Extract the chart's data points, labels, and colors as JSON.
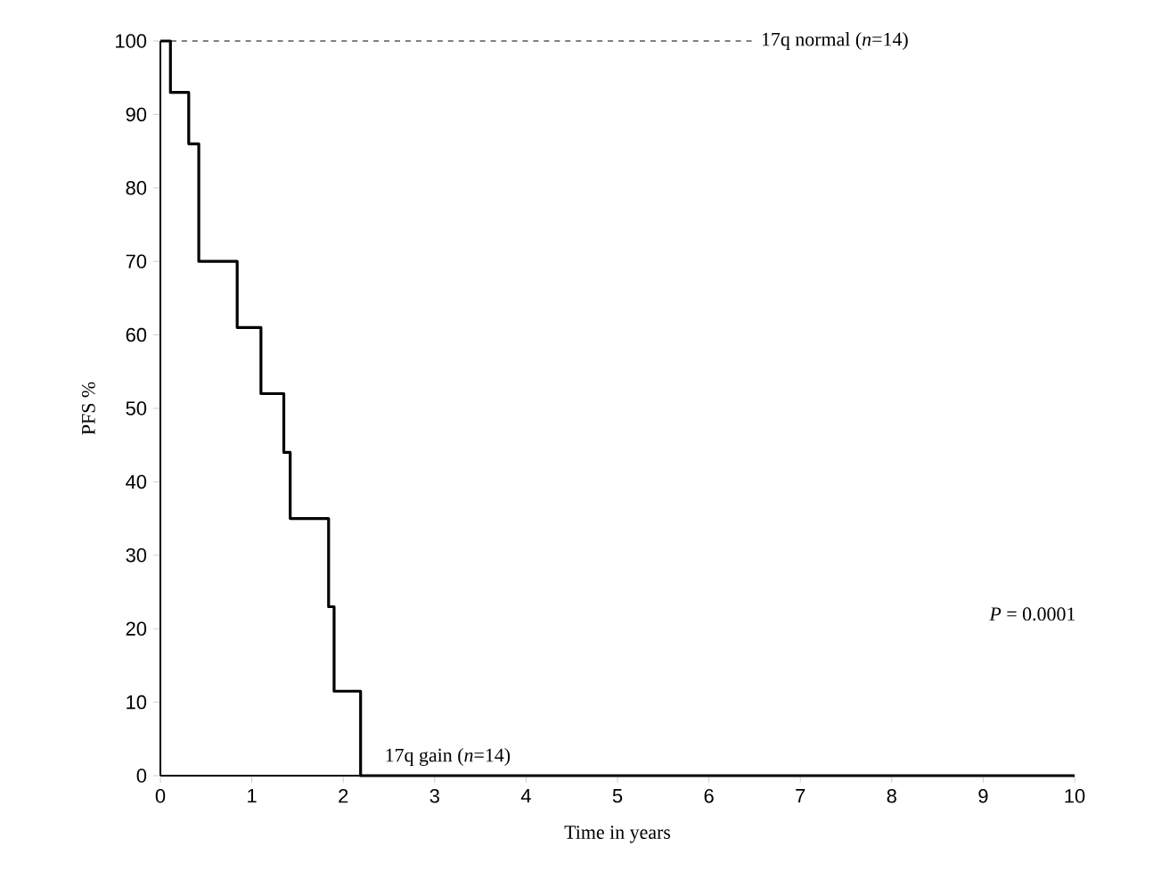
{
  "chart_data": {
    "type": "step",
    "xlabel": "Time in years",
    "ylabel": "PFS %",
    "xlim": [
      0,
      10
    ],
    "ylim": [
      0,
      100
    ],
    "xticks": [
      0,
      1,
      2,
      3,
      4,
      5,
      6,
      7,
      8,
      9,
      10
    ],
    "yticks": [
      0,
      10,
      20,
      30,
      40,
      50,
      60,
      70,
      80,
      90,
      100
    ],
    "series": [
      {
        "name": "17q  normal (*n*=14)",
        "color": "#000000",
        "line_style": "dashed",
        "x": [
          0,
          6.5
        ],
        "values": [
          100,
          100
        ]
      },
      {
        "name": "17q  gain (*n*=14)",
        "color": "#000000",
        "line_style": "solid",
        "x": [
          0,
          0.11,
          0.31,
          0.42,
          0.84,
          1.1,
          1.35,
          1.42,
          1.84,
          1.9,
          2.19,
          10
        ],
        "values": [
          100,
          93,
          86,
          70,
          61,
          52,
          44,
          35,
          23,
          11.5,
          0,
          0
        ]
      }
    ],
    "annotations": [
      "*P* = 0.0001"
    ],
    "grid": false
  }
}
